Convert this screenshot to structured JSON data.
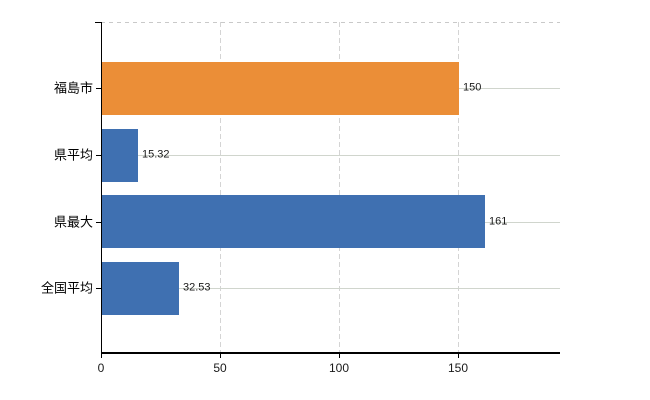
{
  "chart_data": {
    "type": "bar",
    "orientation": "horizontal",
    "title": "",
    "xlabel": "",
    "ylabel": "",
    "legend": "none",
    "grid": "on",
    "categories": [
      "福島市",
      "県平均",
      "県最大",
      "全国平均"
    ],
    "values": [
      150,
      15.32,
      161,
      32.53
    ],
    "value_labels": [
      "150",
      "15.32",
      "161",
      "32.53"
    ],
    "bar_colors": [
      "#eb8e37",
      "#3f70b1",
      "#3f70b1",
      "#3f70b1"
    ],
    "x_ticks": [
      "0",
      "50",
      "100",
      "150"
    ],
    "x_tick_values": [
      0,
      50,
      100,
      150
    ],
    "xlim": [
      0,
      193
    ],
    "colors": {
      "background": "#ffffff",
      "axis": "#000000",
      "grid_vertical": "#d4d4d4",
      "grid_horizontal": "#d0d5cd",
      "top_border": "#c9c9c9",
      "text": "#000000"
    }
  }
}
